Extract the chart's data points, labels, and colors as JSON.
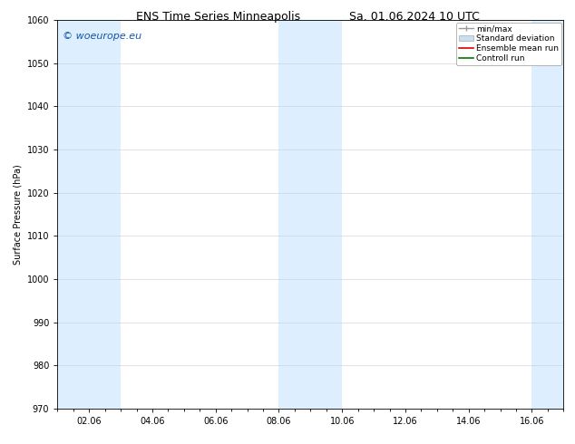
{
  "title_left": "ENS Time Series Minneapolis",
  "title_right": "Sa. 01.06.2024 10 UTC",
  "ylabel": "Surface Pressure (hPa)",
  "ylim": [
    970,
    1060
  ],
  "yticks": [
    970,
    980,
    990,
    1000,
    1010,
    1020,
    1030,
    1040,
    1050,
    1060
  ],
  "xtick_labels": [
    "02.06",
    "04.06",
    "06.06",
    "08.06",
    "10.06",
    "12.06",
    "14.06",
    "16.06"
  ],
  "xtick_positions": [
    1,
    3,
    5,
    7,
    9,
    11,
    13,
    15
  ],
  "xlim": [
    0,
    16
  ],
  "shaded_bands": [
    {
      "x_start": 0.0,
      "x_end": 2.0
    },
    {
      "x_start": 7.0,
      "x_end": 9.0
    },
    {
      "x_start": 15.0,
      "x_end": 16.0
    }
  ],
  "shaded_color": "#ddeeff",
  "background_color": "#ffffff",
  "watermark_text": "© woeurope.eu",
  "watermark_color": "#1155aa",
  "legend_entries": [
    {
      "label": "min/max",
      "color": "#999999",
      "style": "errorbar"
    },
    {
      "label": "Standard deviation",
      "color": "#c8dff0",
      "style": "fill"
    },
    {
      "label": "Ensemble mean run",
      "color": "#dd0000",
      "style": "line"
    },
    {
      "label": "Controll run",
      "color": "#007700",
      "style": "line"
    }
  ],
  "grid_color": "#cccccc",
  "tick_color": "#000000",
  "font_size_title": 9,
  "font_size_axis": 7,
  "font_size_tick": 7,
  "font_size_legend": 6.5,
  "font_size_watermark": 8
}
